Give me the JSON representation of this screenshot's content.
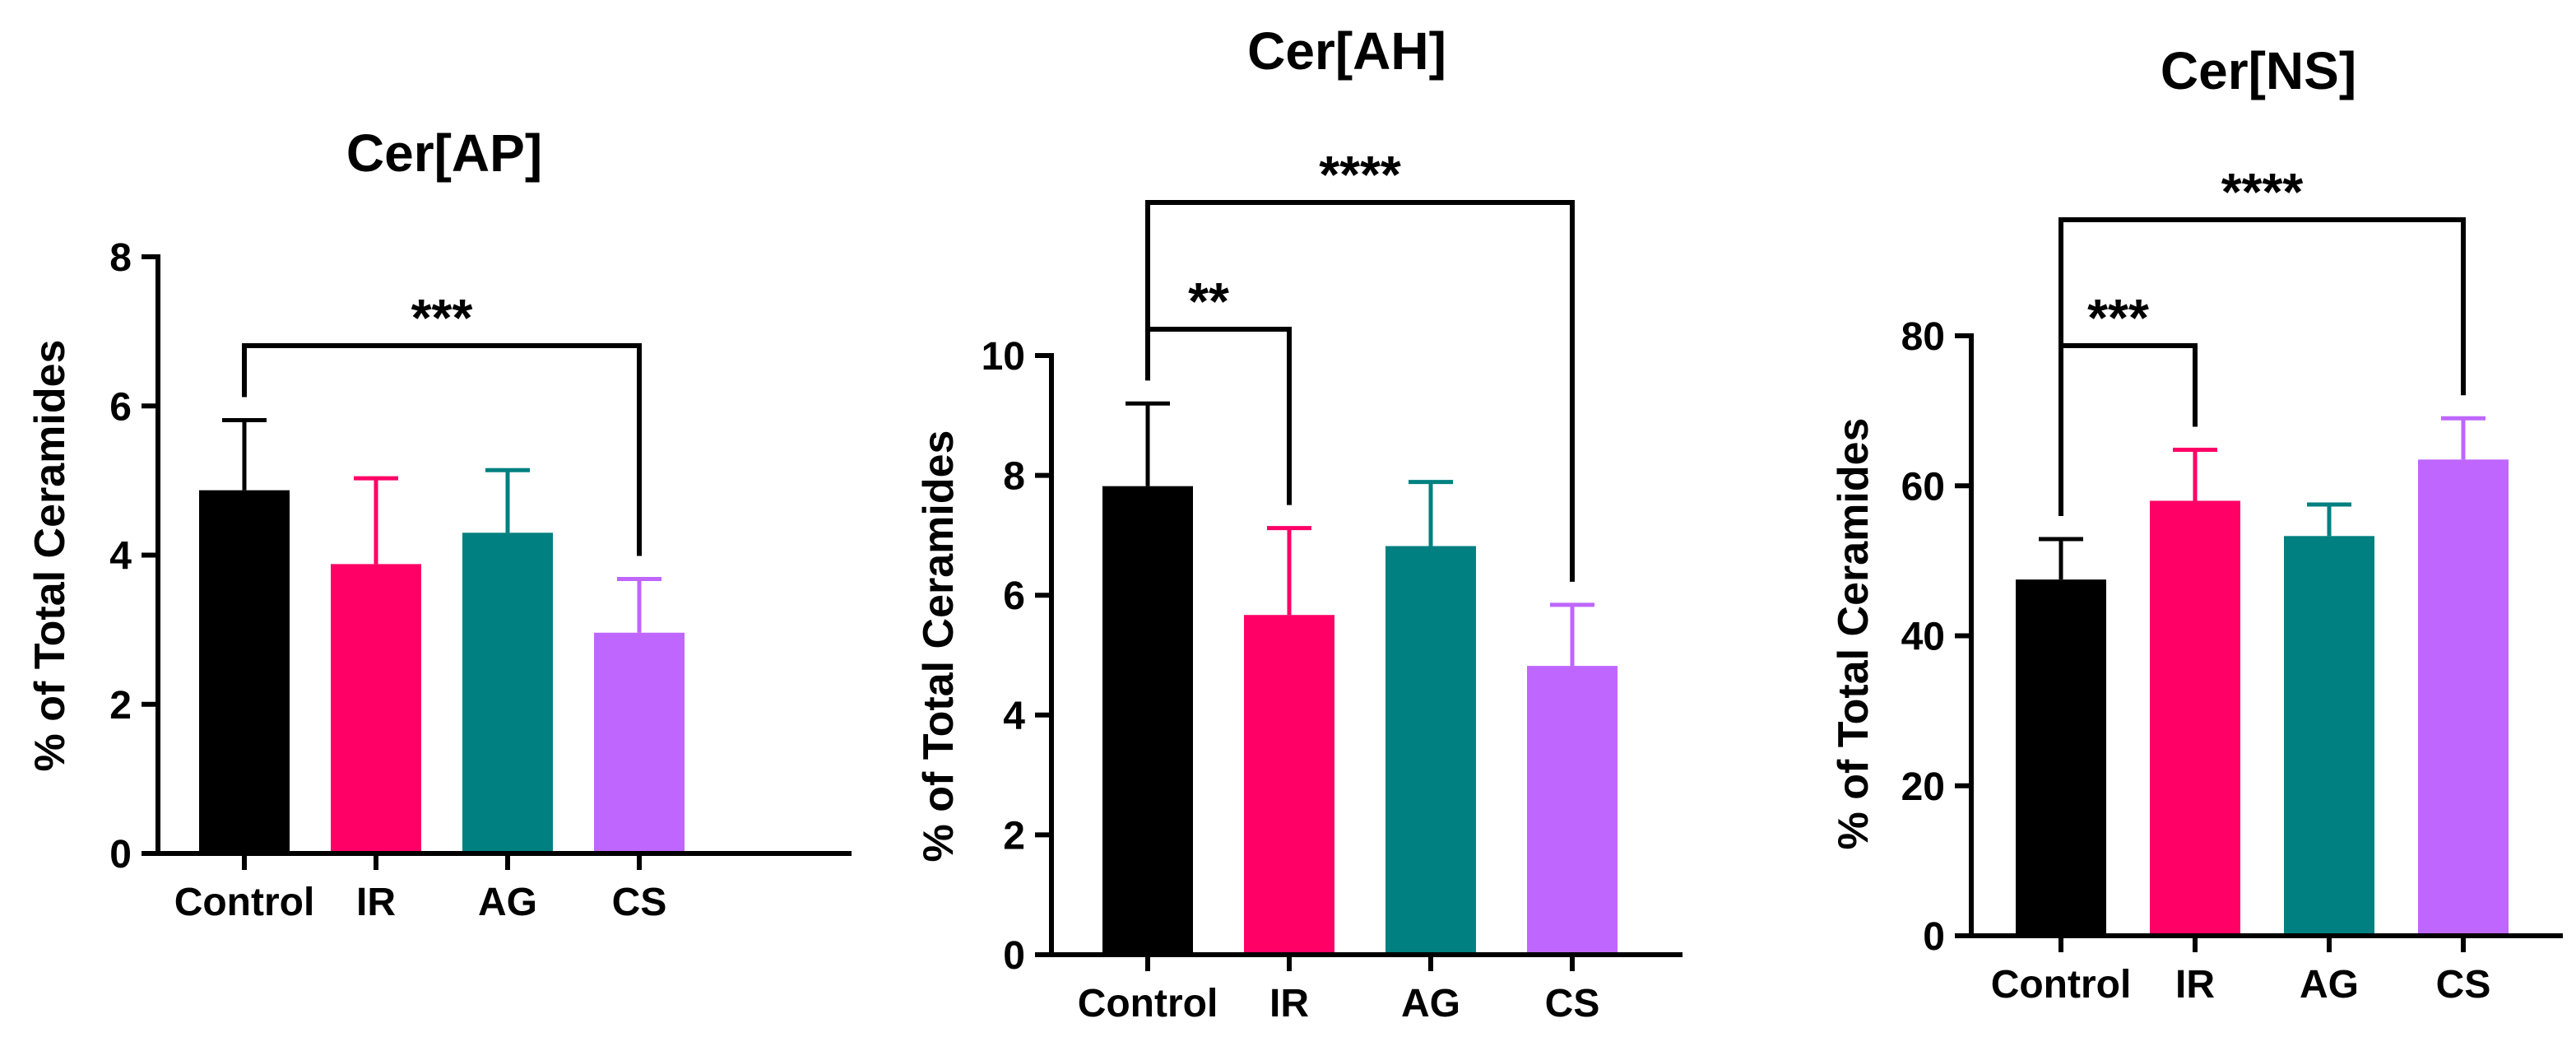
{
  "colors": {
    "Control": "#000000",
    "IR": "#ff0066",
    "AG": "#008080",
    "CS": "#bf66ff"
  },
  "chart_data": [
    {
      "type": "bar",
      "title": "Cer[AP]",
      "ylabel": "% of Total Ceramides",
      "xlabel": "",
      "categories": [
        "Control",
        "IR",
        "AG",
        "CS"
      ],
      "values": [
        4.87,
        3.88,
        4.3,
        2.96
      ],
      "errors": [
        0.94,
        1.15,
        0.84,
        0.72
      ],
      "ylim": [
        0,
        8
      ],
      "yticks": [
        0,
        2,
        4,
        6,
        8
      ],
      "significance": [
        {
          "from": "Control",
          "to": "CS",
          "label": "***"
        }
      ]
    },
    {
      "type": "bar",
      "title": "Cer[AH]",
      "ylabel": "% of Total Ceramides",
      "xlabel": "",
      "categories": [
        "Control",
        "IR",
        "AG",
        "CS"
      ],
      "values": [
        7.82,
        5.67,
        6.82,
        4.82
      ],
      "errors": [
        1.38,
        1.45,
        1.07,
        1.02
      ],
      "ylim": [
        0,
        10
      ],
      "yticks": [
        0,
        2,
        4,
        6,
        8,
        10
      ],
      "significance": [
        {
          "from": "Control",
          "to": "IR",
          "label": "**"
        },
        {
          "from": "Control",
          "to": "CS",
          "label": "****"
        }
      ]
    },
    {
      "type": "bar",
      "title": "Cer[NS]",
      "ylabel": "% of Total Ceramides",
      "xlabel": "",
      "categories": [
        "Control",
        "IR",
        "AG",
        "CS"
      ],
      "values": [
        47.5,
        58.0,
        53.3,
        63.5
      ],
      "errors": [
        5.4,
        6.8,
        4.2,
        5.5
      ],
      "ylim": [
        0,
        80
      ],
      "yticks": [
        0,
        20,
        40,
        60,
        80
      ],
      "significance": [
        {
          "from": "Control",
          "to": "IR",
          "label": "***"
        },
        {
          "from": "Control",
          "to": "CS",
          "label": "****"
        }
      ]
    }
  ]
}
